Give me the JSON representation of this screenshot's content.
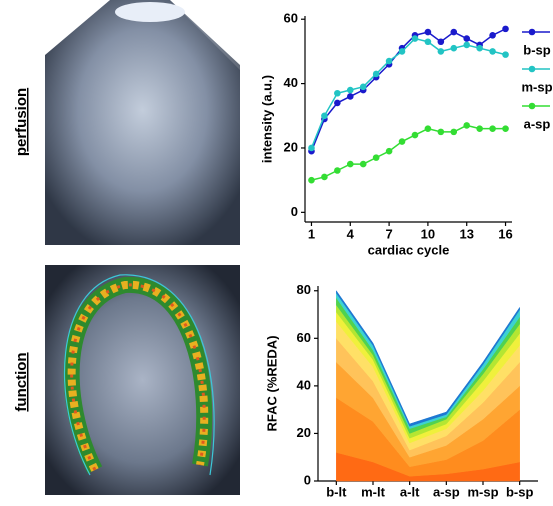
{
  "panel_labels": [
    "perfusion",
    "function"
  ],
  "chart_data": [
    {
      "type": "line",
      "xlabel": "cardiac cycle",
      "ylabel": "intensity (a.u.)",
      "x": [
        1,
        2,
        3,
        4,
        5,
        6,
        7,
        8,
        9,
        10,
        11,
        12,
        13,
        14,
        15,
        16
      ],
      "xlim": [
        0.5,
        16.5
      ],
      "xticks": [
        1,
        4,
        7,
        10,
        13,
        16
      ],
      "ylim": [
        -3,
        61
      ],
      "yticks": [
        0,
        20,
        40,
        60
      ],
      "legend": "right",
      "series": [
        {
          "name": "b-sp",
          "color": "#1a1acc",
          "values": [
            19,
            29,
            34,
            36,
            38,
            42,
            46,
            51,
            55,
            56,
            53,
            56,
            54,
            52,
            55,
            57
          ]
        },
        {
          "name": "m-sp",
          "color": "#22c4c4",
          "values": [
            20,
            30,
            37,
            38,
            39,
            43,
            47,
            50,
            54,
            53,
            50,
            51,
            52,
            51,
            50,
            49
          ]
        },
        {
          "name": "a-sp",
          "color": "#33dd33",
          "values": [
            10,
            11,
            13,
            15,
            15,
            17,
            19,
            22,
            24,
            26,
            25,
            25,
            27,
            26,
            26,
            26
          ]
        }
      ]
    },
    {
      "type": "stacked_area",
      "ylabel": "RFAC (%REDA)",
      "categories": [
        "b-lt",
        "m-lt",
        "a-lt",
        "a-sp",
        "m-sp",
        "b-sp"
      ],
      "ylim": [
        0,
        82
      ],
      "yticks": [
        0,
        20,
        40,
        60,
        80
      ],
      "series": [
        {
          "color": "#ff6a14",
          "values": [
            12,
            8,
            2,
            3,
            5,
            8
          ]
        },
        {
          "color": "#ff8c1e",
          "values": [
            23,
            17,
            4,
            6,
            12,
            22
          ]
        },
        {
          "color": "#ffa532",
          "values": [
            15,
            10,
            4,
            6,
            9,
            10
          ]
        },
        {
          "color": "#ffc35a",
          "values": [
            10,
            7,
            3,
            4,
            7,
            10
          ]
        },
        {
          "color": "#ffe066",
          "values": [
            7,
            6,
            3,
            3,
            5,
            7
          ]
        },
        {
          "color": "#f0f03c",
          "values": [
            4,
            3,
            2,
            2,
            4,
            5
          ]
        },
        {
          "color": "#b4e632",
          "values": [
            3,
            2,
            2,
            2,
            3,
            4
          ]
        },
        {
          "color": "#50d250",
          "values": [
            3,
            2,
            2,
            1,
            2,
            3
          ]
        },
        {
          "color": "#3cd2d2",
          "values": [
            2,
            2,
            1,
            1,
            2,
            3
          ]
        },
        {
          "color": "#1e78d2",
          "values": [
            1,
            1,
            1,
            1,
            1,
            1
          ]
        }
      ]
    }
  ]
}
